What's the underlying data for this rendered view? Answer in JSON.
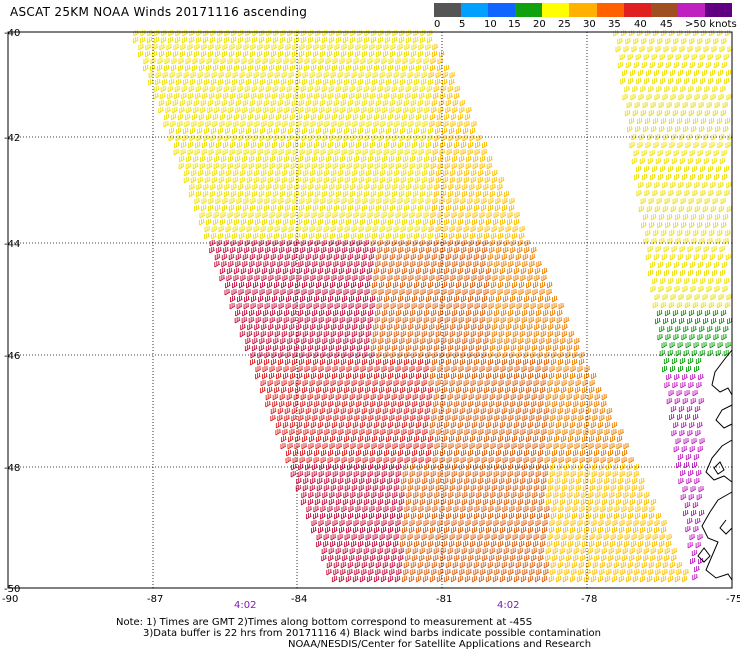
{
  "title": "ASCAT 25KM NOAA Winds 20171116 ascending",
  "colorbar": {
    "labels": [
      "0",
      "5",
      "10",
      "15",
      "20",
      "25",
      "30",
      "35",
      "40",
      "45",
      ">50 knots"
    ],
    "colors": [
      "#555555",
      "#00a0ff",
      "#1064ff",
      "#10a010",
      "#ffff00",
      "#ffb000",
      "#ff6000",
      "#e02020",
      "#a05020",
      "#c020c0",
      "#600080"
    ]
  },
  "map": {
    "lat_labels": [
      "-40",
      "-42",
      "-44",
      "-46",
      "-48",
      "-50"
    ],
    "lon_labels": [
      "-90",
      "-87",
      "-84",
      "-81",
      "-78",
      "-75"
    ],
    "time_labels": [
      "4:02",
      "4:02"
    ]
  },
  "legend_colors": {
    "dark_green": "#007800",
    "green": "#10a010",
    "yellow": "#f0e000",
    "gold": "#ffc000",
    "orange": "#f08000",
    "dark_orange": "#e06010",
    "red": "#e02020",
    "crimson": "#c8103c",
    "magenta": "#c020c0",
    "blue": "#1064ff",
    "coast": "#000000"
  },
  "footer": {
    "line1": "Note: 1) Times are GMT 2)Times along bottom correspond to measurement at -45S",
    "line2": "3)Data buffer is 22 hrs from 20171116 4) Black wind barbs indicate possible contamination",
    "line3": "NOAA/NESDIS/Center for Satellite Applications and Research"
  }
}
